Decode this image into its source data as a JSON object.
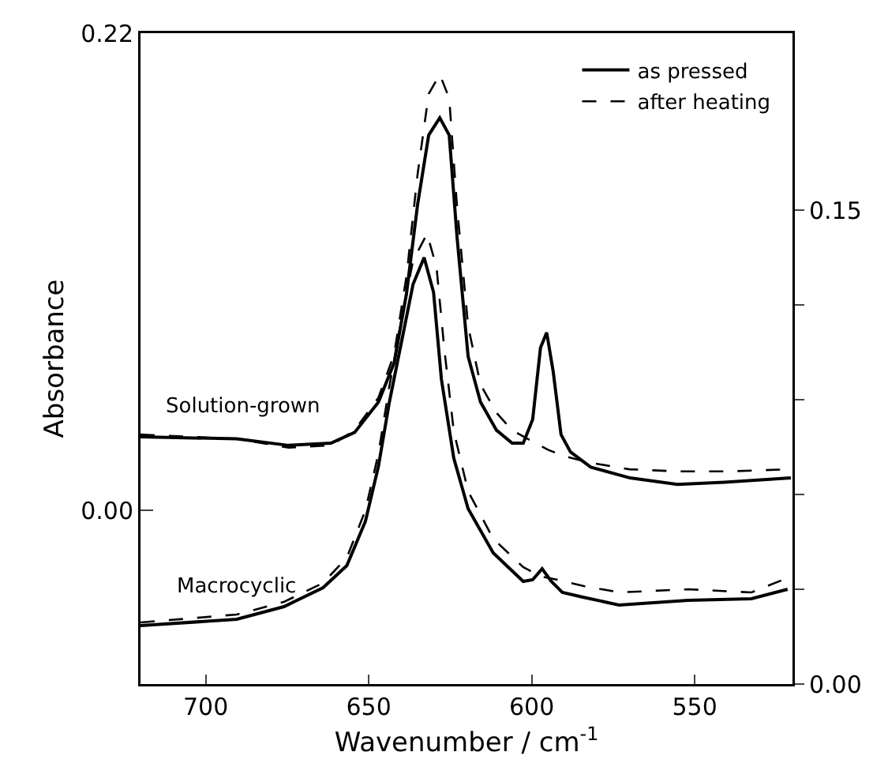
{
  "chart_data": {
    "type": "line",
    "xlabel": "Wavenumber / cm$^{-1}$",
    "ylabel": "Absorbance",
    "xlim": [
      720,
      520
    ],
    "xticks": [
      700,
      650,
      600,
      550
    ],
    "ylim": [
      -0.08,
      0.22
    ],
    "yticks": [
      0.22,
      {
        "value": 0,
        "label": "0.00"
      }
    ],
    "y2lim": [
      0,
      0.206
    ],
    "y2ticks": [
      {
        "value": 0,
        "label": "0.00"
      },
      {
        "value": 0.03,
        "label": null
      },
      {
        "value": 0.06,
        "label": null
      },
      {
        "value": 0.09,
        "label": null
      },
      {
        "value": 0.12,
        "label": null
      },
      0.15
    ],
    "grid": false,
    "legend": "top right",
    "marker": "none",
    "annotations": [
      "Solution-grown",
      "Macrocyclic"
    ],
    "series": [
      {
        "name": "as pressed",
        "color": "#000000",
        "line_style": "solid",
        "x": [
          720,
          690.5,
          674.6,
          661.6,
          654.3,
          647,
          642.2,
          638.4,
          635,
          631.6,
          628.2,
          625.3,
          622.9,
          619.5,
          615.7,
          610.8,
          606,
          602.6,
          599.7,
          597.3,
          595.4,
          593.4,
          591,
          588.1,
          581.9,
          569.8,
          555.3,
          540.8,
          520.5
        ],
        "values": [
          0.034,
          0.033,
          0.03,
          0.031,
          0.036,
          0.05,
          0.068,
          0.1,
          0.141,
          0.173,
          0.181,
          0.173,
          0.126,
          0.071,
          0.05,
          0.037,
          0.031,
          0.031,
          0.042,
          0.075,
          0.082,
          0.064,
          0.035,
          0.027,
          0.02,
          0.015,
          0.012,
          0.013,
          0.015
        ]
      },
      {
        "name": "after heating",
        "color": "#000000",
        "line_style": "dashed",
        "x": [
          720,
          690.5,
          674.6,
          661.6,
          654.3,
          647,
          642.2,
          638.4,
          635,
          631.6,
          628.2,
          625.3,
          622.9,
          619.5,
          615.7,
          610.8,
          606,
          600,
          595,
          590,
          582,
          570,
          555,
          540,
          520.5
        ],
        "values": [
          0.035,
          0.033,
          0.029,
          0.03,
          0.037,
          0.052,
          0.072,
          0.108,
          0.155,
          0.192,
          0.201,
          0.19,
          0.14,
          0.085,
          0.058,
          0.045,
          0.037,
          0.032,
          0.028,
          0.025,
          0.022,
          0.019,
          0.018,
          0.018,
          0.019
        ]
      },
      {
        "color": "#000000",
        "line_style": "solid",
        "axis": "y2",
        "x": [
          720,
          690.5,
          676,
          664,
          656.7,
          651,
          647,
          643.7,
          639.8,
          636.4,
          633,
          630.1,
          627.7,
          623.9,
          619.5,
          611.8,
          602.6,
          599.7,
          596.8,
          594,
          590.6,
          584.3,
          573.2,
          552,
          532.6,
          521.5
        ],
        "values": [
          0.0185,
          0.0205,
          0.0245,
          0.0305,
          0.0375,
          0.0515,
          0.069,
          0.089,
          0.109,
          0.1265,
          0.135,
          0.124,
          0.0965,
          0.0715,
          0.0555,
          0.0415,
          0.0325,
          0.033,
          0.0365,
          0.0325,
          0.029,
          0.0275,
          0.025,
          0.0265,
          0.027,
          0.03
        ]
      },
      {
        "color": "#000000",
        "line_style": "dashed",
        "axis": "y2",
        "x": [
          720,
          690.5,
          676,
          664,
          656.7,
          651,
          647,
          643.7,
          639.8,
          636.4,
          632.1,
          629.2,
          626.8,
          623.9,
          619.5,
          611.8,
          602.6,
          597,
          592,
          584,
          573,
          552,
          532.6,
          520.5
        ],
        "values": [
          0.0195,
          0.022,
          0.026,
          0.032,
          0.04,
          0.055,
          0.073,
          0.094,
          0.116,
          0.134,
          0.1425,
          0.132,
          0.106,
          0.08,
          0.061,
          0.046,
          0.037,
          0.034,
          0.033,
          0.031,
          0.029,
          0.03,
          0.029,
          0.034
        ]
      }
    ]
  }
}
